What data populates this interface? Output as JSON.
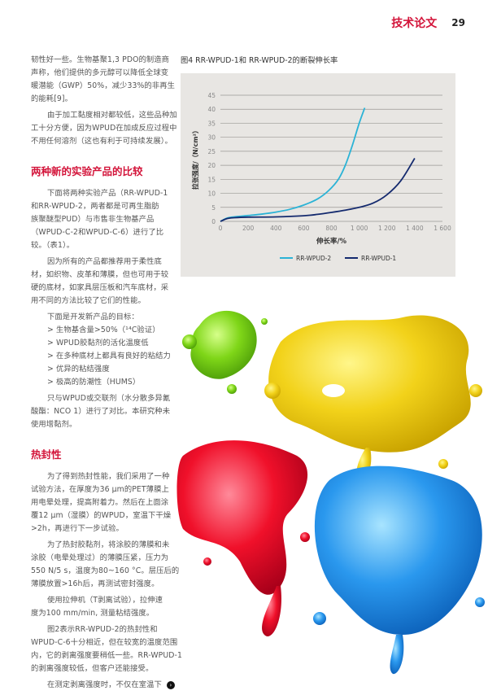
{
  "header": {
    "section": "技术论文",
    "page_number": "29"
  },
  "body": [
    {
      "type": "para",
      "lines": [
        "韧性好一些。生物基聚1,3 PDO的制造商",
        "声称，他们提供的多元醇可以降低全球变",
        "暖潜能（GWP）50%，减少33%的非再生",
        "的能耗[9]。"
      ],
      "first_indent": false
    },
    {
      "type": "para",
      "lines": [
        "由于加工黏度相对都较低，这些品种加",
        "工十分方便，因为WPUD在加成反应过程中",
        "不用任何溶剂（这也有利于可持续发展）。"
      ],
      "first_indent": true
    },
    {
      "type": "heading",
      "text": "两种新的实验产品的比较"
    },
    {
      "type": "para",
      "lines": [
        "下面将两种实验产品（RR-WPUD-1",
        "和RR-WPUD-2，两者都是可再生脂肪",
        "族聚醚型PUD）与市售非生物基产品",
        "（WPUD-C-2和WPUD-C-6）进行了比",
        "较。（表1）。"
      ],
      "first_indent": true
    },
    {
      "type": "para",
      "lines": [
        "因为所有的产品都推荐用于柔性底",
        "材，如织物、皮革和薄膜，但也可用于较",
        "硬的底材，如家具层压板和汽车底材，采",
        "用不同的方法比较了它们的性能。"
      ],
      "first_indent": true
    },
    {
      "type": "list",
      "lines": [
        "下面是开发新产品的目标：",
        "> 生物基含量>50%（¹⁴C验证）",
        "> WPUD胶黏剂的活化温度低",
        "> 在多种底材上都具有良好的粘结力",
        "> 优异的粘结强度",
        "> 极高的防潮性（HUMS）"
      ]
    },
    {
      "type": "para",
      "lines": [
        "只与WPUD或交联剂（水分散多异氰",
        "酸酯：NCO 1）进行了对比。本研究种未",
        "使用增黏剂。"
      ],
      "first_indent": true
    },
    {
      "type": "heading",
      "text": "热封性"
    },
    {
      "type": "para",
      "lines": [
        "为了得到热封性能，我们采用了一种",
        "试验方法，在厚度为36 μm的PET薄膜上",
        "用电晕处理，提高附着力。然后在上面涂",
        "覆12 μm（湿膜）的WPUD，室温下干燥",
        ">2h，再进行下一步试验。"
      ],
      "first_indent": true
    },
    {
      "type": "para",
      "lines": [
        "为了热封胶黏剂，将涂胶的薄膜和未",
        "涂胶（电晕处理过）的薄膜压紧，压力为",
        "550 N/5 s，温度为80~160 °C。层压后的",
        "薄膜放置>16h后，再测试密封强度。"
      ],
      "first_indent": true
    },
    {
      "type": "para",
      "lines": [
        "使用拉伸机（T剥离试验），拉伸速",
        "度为100 mm/min, 测量粘结强度。"
      ],
      "first_indent": true
    },
    {
      "type": "para",
      "lines": [
        "图2表示RR-WPUD-2的热封性和",
        "WPUD-C-6十分相近，但在较宽的温度范围",
        "内，它的剥离强度要稍低一些。RR-WPUD-1",
        "的剥离强度较低，但客户还能接受。"
      ],
      "first_indent": true
    },
    {
      "type": "para",
      "lines": [
        "在测定剥离强度时，不仅在室温下"
      ],
      "first_indent": true,
      "continue_icon": "arrow-right-circle-icon"
    }
  ],
  "figure": {
    "caption": "图4 RR-WPUD-1和 RR-WPUD-2的断裂伸长率"
  },
  "chart_data": {
    "type": "line",
    "title": "图4 RR-WPUD-1和 RR-WPUD-2的断裂伸长率",
    "xlabel": "伸长率/%",
    "ylabel": "拉张强度/（N/cm²）",
    "xlim": [
      0,
      1600
    ],
    "ylim": [
      0,
      45
    ],
    "xticks": [
      "0",
      "200",
      "400",
      "600",
      "800",
      "1 000",
      "1 200",
      "1 400",
      "1 600"
    ],
    "yticks": [
      "0",
      "5",
      "10",
      "15",
      "20",
      "25",
      "30",
      "35",
      "40",
      "45"
    ],
    "grid": "horizontal",
    "legend": "bottom",
    "series": [
      {
        "name": "RR-WPUD-2",
        "color": "#2bb3d6",
        "x": [
          0,
          50,
          100,
          200,
          300,
          400,
          500,
          600,
          700,
          780,
          850,
          900,
          950,
          1000,
          1040
        ],
        "y": [
          0,
          1.2,
          1.6,
          2.1,
          2.6,
          3.3,
          4.3,
          5.8,
          8,
          11,
          15,
          20,
          27,
          35,
          40.5
        ]
      },
      {
        "name": "RR-WPUD-1",
        "color": "#142a6e",
        "x": [
          0,
          50,
          100,
          200,
          400,
          600,
          700,
          800,
          900,
          1000,
          1100,
          1200,
          1300,
          1400
        ],
        "y": [
          0,
          1,
          1.3,
          1.5,
          1.6,
          2,
          2.5,
          3.2,
          4,
          5,
          6.5,
          9.5,
          14.5,
          22.5
        ]
      }
    ]
  },
  "colors": {
    "accent": "#d3143a",
    "chart_bg": "#e8e6e3"
  }
}
